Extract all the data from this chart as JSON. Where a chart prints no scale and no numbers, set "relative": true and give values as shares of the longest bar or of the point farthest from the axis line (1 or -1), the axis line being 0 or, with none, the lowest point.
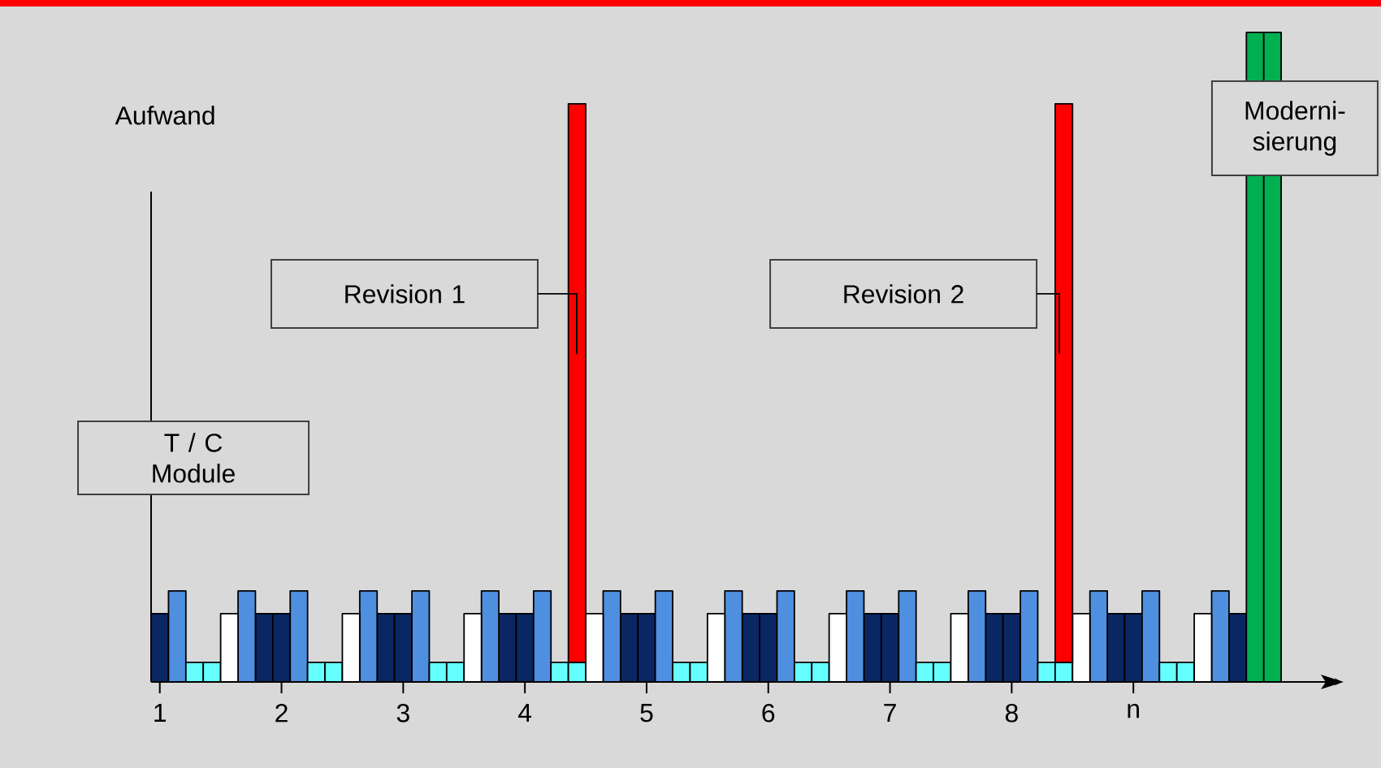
{
  "chart_data": {
    "type": "bar",
    "stacked": true,
    "relative": true,
    "ylabel": "Aufwand",
    "categories": [
      "1",
      null,
      null,
      null,
      null,
      null,
      null,
      "2",
      null,
      null,
      null,
      null,
      null,
      null,
      "3",
      null,
      null,
      null,
      null,
      null,
      null,
      "4",
      null,
      null,
      null,
      null,
      null,
      null,
      "5",
      null,
      null,
      null,
      null,
      null,
      null,
      "6",
      null,
      null,
      null,
      null,
      null,
      null,
      "7",
      null,
      null,
      null,
      null,
      null,
      null,
      "8",
      null,
      null,
      null,
      null,
      null,
      null,
      "n",
      null,
      null,
      null,
      null,
      null,
      null,
      null,
      null
    ],
    "series": [
      {
        "color": "#0b2763",
        "values": [
          0.105,
          null,
          null,
          null,
          null,
          null,
          0.105,
          0.105,
          null,
          null,
          null,
          null,
          null,
          0.105,
          0.105,
          null,
          null,
          null,
          null,
          null,
          0.105,
          0.105,
          null,
          null,
          null,
          null,
          null,
          0.105,
          0.105,
          null,
          null,
          null,
          null,
          null,
          0.105,
          0.105,
          null,
          null,
          null,
          null,
          null,
          0.105,
          0.105,
          null,
          null,
          null,
          null,
          null,
          0.105,
          0.105,
          null,
          null,
          null,
          null,
          null,
          0.105,
          0.105,
          null,
          null,
          null,
          null,
          null,
          0.105,
          null,
          null
        ]
      },
      {
        "color": "#4f8fe0",
        "values": [
          null,
          0.14,
          null,
          null,
          null,
          0.14,
          null,
          null,
          0.14,
          null,
          null,
          null,
          0.14,
          null,
          null,
          0.14,
          null,
          null,
          null,
          0.14,
          null,
          null,
          0.14,
          null,
          null,
          null,
          0.14,
          null,
          null,
          0.14,
          null,
          null,
          null,
          0.14,
          null,
          null,
          0.14,
          null,
          null,
          null,
          0.14,
          null,
          null,
          0.14,
          null,
          null,
          null,
          0.14,
          null,
          null,
          0.14,
          null,
          null,
          null,
          0.14,
          null,
          null,
          0.14,
          null,
          null,
          null,
          0.14,
          null,
          null,
          null
        ]
      },
      {
        "color": "#66ffff",
        "values": [
          null,
          null,
          0.03,
          0.03,
          null,
          null,
          null,
          null,
          null,
          0.03,
          0.03,
          null,
          null,
          null,
          null,
          null,
          0.03,
          0.03,
          null,
          null,
          null,
          null,
          null,
          0.03,
          0.03,
          null,
          null,
          null,
          null,
          null,
          0.03,
          0.03,
          null,
          null,
          null,
          null,
          null,
          0.03,
          0.03,
          null,
          null,
          null,
          null,
          null,
          0.03,
          0.03,
          null,
          null,
          null,
          null,
          null,
          0.03,
          0.03,
          null,
          null,
          null,
          null,
          null,
          0.03,
          0.03,
          null,
          null,
          null,
          null,
          null
        ]
      },
      {
        "color": "#ffffff",
        "values": [
          null,
          null,
          null,
          null,
          0.105,
          null,
          null,
          null,
          null,
          null,
          null,
          0.105,
          null,
          null,
          null,
          null,
          null,
          null,
          0.105,
          null,
          null,
          null,
          null,
          null,
          null,
          0.105,
          null,
          null,
          null,
          null,
          null,
          null,
          0.105,
          null,
          null,
          null,
          null,
          null,
          null,
          0.105,
          null,
          null,
          null,
          null,
          null,
          null,
          0.105,
          null,
          null,
          null,
          null,
          null,
          null,
          0.105,
          null,
          null,
          null,
          null,
          null,
          null,
          0.105,
          null,
          null,
          null,
          null
        ]
      },
      {
        "color": "#ff0000",
        "values": [
          null,
          null,
          null,
          null,
          null,
          null,
          null,
          null,
          null,
          null,
          null,
          null,
          null,
          null,
          null,
          null,
          null,
          null,
          null,
          null,
          null,
          null,
          null,
          null,
          0.86,
          null,
          null,
          null,
          null,
          null,
          null,
          null,
          null,
          null,
          null,
          null,
          null,
          null,
          null,
          null,
          null,
          null,
          null,
          null,
          null,
          null,
          null,
          null,
          null,
          null,
          null,
          null,
          0.86,
          null,
          null,
          null,
          null,
          null,
          null,
          null,
          null,
          null,
          null,
          null,
          null
        ]
      },
      {
        "color": "#00b050",
        "values": [
          null,
          null,
          null,
          null,
          null,
          null,
          null,
          null,
          null,
          null,
          null,
          null,
          null,
          null,
          null,
          null,
          null,
          null,
          null,
          null,
          null,
          null,
          null,
          null,
          null,
          null,
          null,
          null,
          null,
          null,
          null,
          null,
          null,
          null,
          null,
          null,
          null,
          null,
          null,
          null,
          null,
          null,
          null,
          null,
          null,
          null,
          null,
          null,
          null,
          null,
          null,
          null,
          null,
          null,
          null,
          null,
          null,
          null,
          null,
          null,
          null,
          null,
          null,
          1,
          1
        ]
      }
    ],
    "annotations": [
      "T / C Module",
      "Revision 1",
      "Revision 2",
      "Moderni-sierung"
    ]
  }
}
